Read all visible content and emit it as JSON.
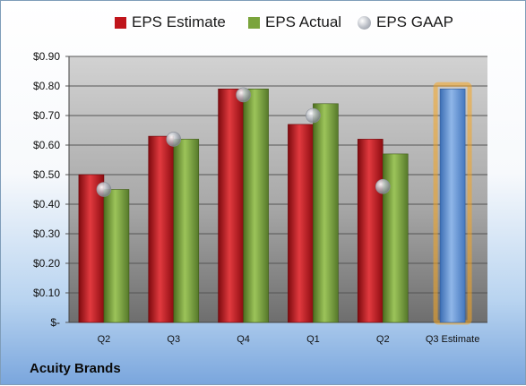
{
  "chart_data": {
    "type": "bar",
    "title": "",
    "xlabel": "",
    "ylabel": "",
    "categories": [
      "Q2",
      "Q3",
      "Q4",
      "Q1",
      "Q2",
      "Q3 Estimate"
    ],
    "series": [
      {
        "name": "EPS Estimate",
        "kind": "bar",
        "color": "#c0151b",
        "values": [
          0.5,
          0.63,
          0.79,
          0.67,
          0.62,
          null
        ]
      },
      {
        "name": "EPS Actual",
        "kind": "bar",
        "color": "#7aa43c",
        "values": [
          0.45,
          0.62,
          0.79,
          0.74,
          0.57,
          null
        ]
      },
      {
        "name": "EPS GAAP",
        "kind": "marker",
        "color": "#b8bcc4",
        "values": [
          0.45,
          0.62,
          0.77,
          0.7,
          0.46,
          null
        ]
      },
      {
        "name": "EPS Estimate (highlighted)",
        "kind": "highlight-bar",
        "color": "#6a9ad8",
        "values": [
          null,
          null,
          null,
          null,
          null,
          0.79
        ]
      }
    ],
    "ylim": [
      0,
      0.9
    ],
    "yticks": [
      0,
      0.1,
      0.2,
      0.3,
      0.4,
      0.5,
      0.6,
      0.7,
      0.8,
      0.9
    ],
    "ytick_labels": [
      "$-",
      "$0.10",
      "$0.20",
      "$0.30",
      "$0.40",
      "$0.50",
      "$0.60",
      "$0.70",
      "$0.80",
      "$0.90"
    ],
    "grid": true,
    "legend_position": "top",
    "highlight_color": "#f5a623",
    "plot_background_top": "#d2d2d2",
    "plot_background_bottom": "#6e6e6e"
  },
  "legend": {
    "items": [
      {
        "label": "EPS Estimate",
        "color": "#c0151b",
        "shape": "square"
      },
      {
        "label": "EPS Actual",
        "color": "#7aa43c",
        "shape": "square"
      },
      {
        "label": "EPS GAAP",
        "color": "#b8bcc4",
        "shape": "circle"
      }
    ]
  },
  "company": {
    "name": "Acuity Brands"
  }
}
